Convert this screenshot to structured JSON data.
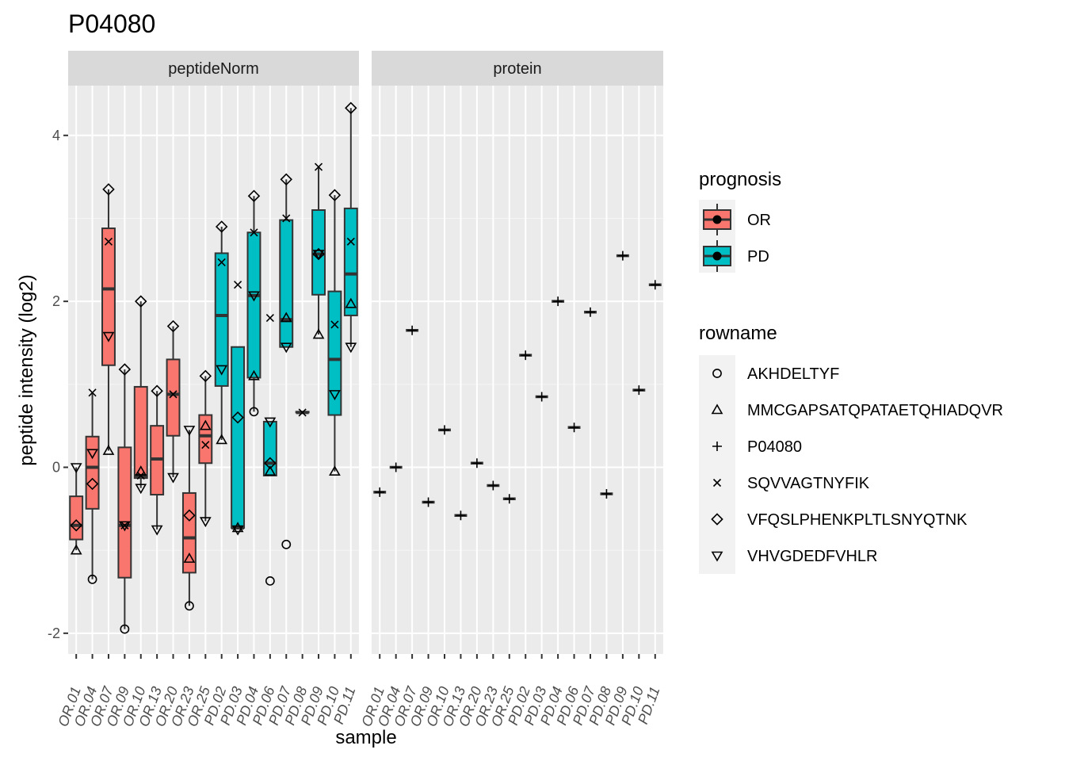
{
  "chart_data": {
    "type": "boxplot",
    "title": "P04080",
    "xlabel": "sample",
    "ylabel": "peptide intensity (log2)",
    "ylim": [
      -2.25,
      4.6
    ],
    "yticks": [
      -2,
      0,
      2,
      4
    ],
    "grid": true,
    "legend_position": "right",
    "panels": [
      "peptideNorm",
      "protein"
    ],
    "samples": [
      "OR.01",
      "OR.04",
      "OR.07",
      "OR.09",
      "OR.10",
      "OR.13",
      "OR.20",
      "OR.23",
      "OR.25",
      "PD.02",
      "PD.03",
      "PD.04",
      "PD.06",
      "PD.07",
      "PD.08",
      "PD.09",
      "PD.10",
      "PD.11"
    ],
    "prognosis": [
      "OR",
      "OR",
      "OR",
      "OR",
      "OR",
      "OR",
      "OR",
      "OR",
      "OR",
      "PD",
      "PD",
      "PD",
      "PD",
      "PD",
      "PD",
      "PD",
      "PD",
      "PD"
    ],
    "fill_colors": {
      "OR": "#F8766D",
      "PD": "#00BFC4"
    },
    "peptideNorm_boxes": [
      {
        "sample": "OR.01",
        "min": -1.0,
        "q1": -0.87,
        "median": -0.7,
        "q3": -0.35,
        "max": 0.0
      },
      {
        "sample": "OR.04",
        "min": -1.35,
        "q1": -0.5,
        "median": 0.0,
        "q3": 0.37,
        "max": 0.9
      },
      {
        "sample": "OR.07",
        "min": 0.2,
        "q1": 1.23,
        "median": 2.15,
        "q3": 2.88,
        "max": 3.35
      },
      {
        "sample": "OR.09",
        "min": -1.95,
        "q1": -1.33,
        "median": -0.7,
        "q3": 0.24,
        "max": 1.18
      },
      {
        "sample": "OR.10",
        "min": -0.25,
        "q1": -0.13,
        "median": -0.1,
        "q3": 0.97,
        "max": 2.0
      },
      {
        "sample": "OR.13",
        "min": -0.75,
        "q1": -0.33,
        "median": 0.1,
        "q3": 0.5,
        "max": 0.92
      },
      {
        "sample": "OR.20",
        "min": -0.12,
        "q1": 0.38,
        "median": 0.88,
        "q3": 1.3,
        "max": 1.7
      },
      {
        "sample": "OR.23",
        "min": -1.67,
        "q1": -1.27,
        "median": -0.85,
        "q3": -0.31,
        "max": 0.45
      },
      {
        "sample": "OR.25",
        "min": -0.65,
        "q1": 0.05,
        "median": 0.38,
        "q3": 0.63,
        "max": 1.1
      },
      {
        "sample": "PD.02",
        "min": 0.33,
        "q1": 0.98,
        "median": 1.83,
        "q3": 2.58,
        "max": 2.9
      },
      {
        "sample": "PD.03",
        "min": -0.75,
        "q1": -0.73,
        "median": -0.73,
        "q3": 1.45,
        "max": 1.45
      },
      {
        "sample": "PD.04",
        "min": 0.67,
        "q1": 1.08,
        "median": 2.07,
        "q3": 2.83,
        "max": 3.27
      },
      {
        "sample": "PD.06",
        "min": -0.1,
        "q1": -0.1,
        "median": 0.05,
        "q3": 0.55,
        "max": 0.55
      },
      {
        "sample": "PD.07",
        "min": 1.45,
        "q1": 1.45,
        "median": 1.78,
        "q3": 2.98,
        "max": 3.47
      },
      {
        "sample": "PD.08",
        "min": 0.66,
        "q1": 0.66,
        "median": 0.66,
        "q3": 0.67,
        "max": 0.67
      },
      {
        "sample": "PD.09",
        "min": 1.6,
        "q1": 2.08,
        "median": 2.57,
        "q3": 3.1,
        "max": 3.62
      },
      {
        "sample": "PD.10",
        "min": -0.05,
        "q1": 0.63,
        "median": 1.3,
        "q3": 2.12,
        "max": 3.28
      },
      {
        "sample": "PD.11",
        "min": 1.45,
        "q1": 1.83,
        "median": 2.33,
        "q3": 3.12,
        "max": 4.33
      }
    ],
    "peptideNorm_points": {
      "AKHDELTYF": {
        "OR.04": -1.35,
        "OR.09": -1.95,
        "OR.23": -1.67,
        "PD.04": 0.67,
        "PD.06": -1.37,
        "PD.07": -0.93
      },
      "MMCGAPSATQPATAETQHIADQVR": {
        "OR.01": -1.0,
        "OR.07": 0.2,
        "OR.10": -0.05,
        "OR.23": -1.1,
        "OR.25": 0.5,
        "PD.02": 0.33,
        "PD.03": -0.73,
        "PD.04": 1.1,
        "PD.06": -0.05,
        "PD.07": 1.8,
        "PD.09": 1.6,
        "PD.10": -0.05,
        "PD.11": 1.97
      },
      "SQVVAGTNYFIK": {
        "OR.04": 0.9,
        "OR.07": 2.72,
        "OR.09": -0.7,
        "OR.10": -0.1,
        "OR.20": 0.88,
        "OR.25": 0.27,
        "PD.02": 2.47,
        "PD.03": 2.2,
        "PD.04": 2.83,
        "PD.06": 1.8,
        "PD.07": 3.0,
        "PD.08": 0.66,
        "PD.09": 3.62,
        "PD.10": 1.72,
        "PD.11": 2.72
      },
      "VFQSLPHENKPLTLSNYQTNK": {
        "OR.01": -0.7,
        "OR.04": -0.2,
        "OR.07": 3.35,
        "OR.09": 1.18,
        "OR.10": 2.0,
        "OR.13": 0.92,
        "OR.20": 1.7,
        "OR.23": -0.58,
        "OR.25": 1.1,
        "PD.02": 2.9,
        "PD.03": 0.6,
        "PD.04": 3.27,
        "PD.06": 0.05,
        "PD.07": 3.47,
        "PD.09": 2.57,
        "PD.10": 3.28,
        "PD.11": 4.33
      },
      "VHVGDEDFVHLR": {
        "OR.01": 0.0,
        "OR.04": 0.17,
        "OR.07": 1.58,
        "OR.09": -0.7,
        "OR.10": -0.25,
        "OR.13": -0.75,
        "OR.20": -0.12,
        "OR.23": 0.45,
        "OR.25": -0.65,
        "PD.02": 1.18,
        "PD.03": -0.75,
        "PD.04": 2.07,
        "PD.06": 0.55,
        "PD.07": 1.45,
        "PD.09": 2.57,
        "PD.10": 0.88,
        "PD.11": 1.45
      }
    },
    "protein_values": {
      "OR.01": -0.3,
      "OR.04": 0.0,
      "OR.07": 1.65,
      "OR.09": -0.42,
      "OR.10": 0.45,
      "OR.13": -0.58,
      "OR.20": 0.05,
      "OR.23": -0.22,
      "OR.25": -0.38,
      "PD.02": 1.35,
      "PD.03": 0.85,
      "PD.04": 2.0,
      "PD.06": 0.48,
      "PD.07": 1.87,
      "PD.08": -0.32,
      "PD.09": 2.55,
      "PD.10": 0.93,
      "PD.11": 2.2
    },
    "legend_prognosis": {
      "title": "prognosis",
      "items": [
        "OR",
        "PD"
      ]
    },
    "legend_rowname": {
      "title": "rowname",
      "items": [
        {
          "label": "AKHDELTYF",
          "shape": "circle"
        },
        {
          "label": "MMCGAPSATQPATAETQHIADQVR",
          "shape": "triangle"
        },
        {
          "label": "P04080",
          "shape": "plus"
        },
        {
          "label": "SQVVAGTNYFIK",
          "shape": "cross"
        },
        {
          "label": "VFQSLPHENKPLTLSNYQTNK",
          "shape": "diamond"
        },
        {
          "label": "VHVGDEDFVHLR",
          "shape": "triangle-down"
        }
      ]
    }
  }
}
